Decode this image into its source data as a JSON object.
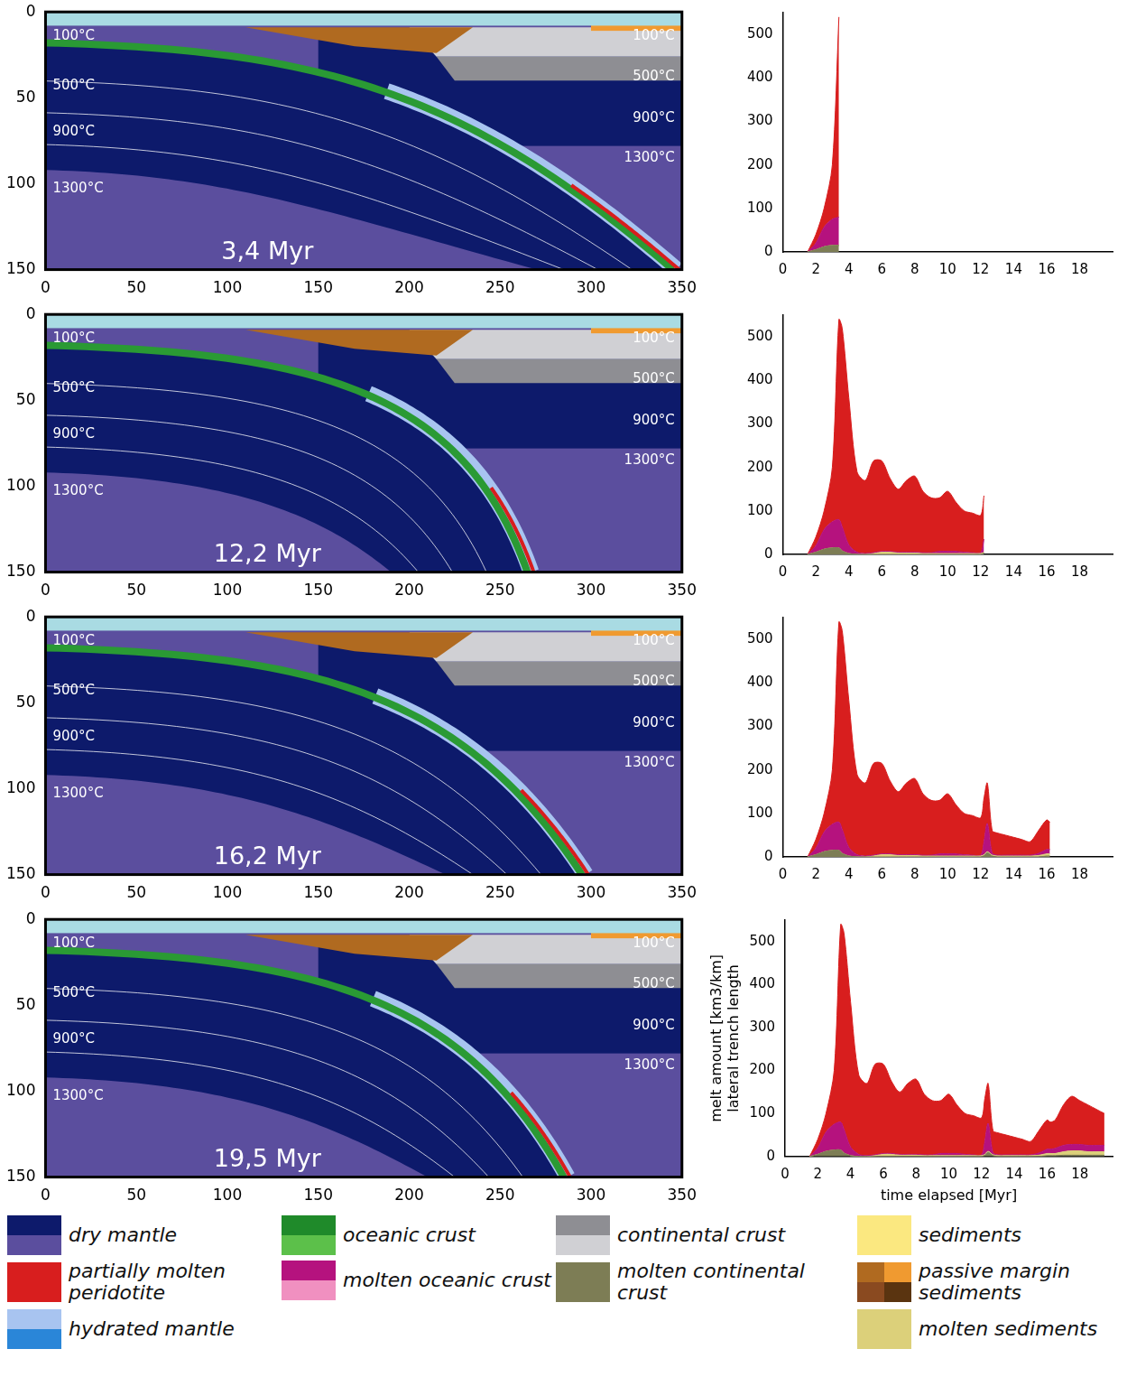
{
  "chart_data": [
    {
      "type": "section",
      "title": "3,4 Myr",
      "xlim": [
        0,
        350
      ],
      "xticks": [
        0,
        50,
        100,
        150,
        200,
        250,
        300,
        350
      ],
      "ylim": [
        150,
        0
      ],
      "yticks": [
        0,
        50,
        100,
        150
      ],
      "grid": false,
      "annotations": [
        "100°C",
        "500°C",
        "900°C",
        "1300°C",
        "100°C",
        "500°C",
        "900°C",
        "1300°C"
      ]
    },
    {
      "type": "area",
      "stacked": true,
      "grid": false,
      "xlim": [
        0,
        20
      ],
      "xticks": [
        0,
        2,
        4,
        6,
        8,
        10,
        12,
        14,
        16,
        18
      ],
      "ylim": [
        0,
        550
      ],
      "yticks": [
        0,
        100,
        200,
        300,
        400,
        500
      ],
      "x": [
        1.5,
        2,
        2.5,
        3,
        3.4
      ],
      "series": [
        {
          "name": "molten continental crust",
          "color": "#7d7d55",
          "values": [
            0,
            5,
            12,
            15,
            15
          ]
        },
        {
          "name": "molten sediments",
          "color": "#dcd07a",
          "values": [
            0,
            0,
            0,
            0,
            0
          ]
        },
        {
          "name": "molten oceanic crust",
          "color": "#b5127e",
          "values": [
            0,
            15,
            45,
            60,
            65
          ]
        },
        {
          "name": "partially molten peridotite",
          "color": "#d81e1e",
          "values": [
            0,
            20,
            43,
            125,
            460
          ]
        }
      ]
    },
    {
      "type": "section",
      "title": "12,2 Myr",
      "xlim": [
        0,
        350
      ],
      "xticks": [
        0,
        50,
        100,
        150,
        200,
        250,
        300,
        350
      ],
      "ylim": [
        150,
        0
      ],
      "yticks": [
        0,
        50,
        100,
        150
      ],
      "grid": false,
      "annotations": [
        "100°C",
        "500°C",
        "900°C",
        "1300°C",
        "100°C",
        "500°C",
        "900°C",
        "1300°C"
      ]
    },
    {
      "type": "area",
      "stacked": true,
      "grid": false,
      "xlim": [
        0,
        20
      ],
      "xticks": [
        0,
        2,
        4,
        6,
        8,
        10,
        12,
        14,
        16,
        18
      ],
      "ylim": [
        0,
        550
      ],
      "yticks": [
        0,
        100,
        200,
        300,
        400,
        500
      ],
      "x": [
        1.5,
        2,
        2.5,
        3,
        3.4,
        3.6,
        4,
        4.5,
        5,
        5.5,
        6,
        6.5,
        7,
        7.5,
        8,
        8.5,
        9,
        9.5,
        10,
        10.5,
        11,
        11.5,
        12,
        12.2
      ],
      "series": [
        {
          "name": "molten continental crust",
          "color": "#7d7d55",
          "values": [
            0,
            5,
            12,
            15,
            15,
            8,
            2,
            0,
            0,
            0,
            0,
            0,
            0,
            0,
            0,
            0,
            0,
            0,
            0,
            0,
            0,
            0,
            0,
            3
          ]
        },
        {
          "name": "molten sediments",
          "color": "#dcd07a",
          "values": [
            0,
            0,
            0,
            0,
            0,
            0,
            0,
            0,
            0,
            2,
            5,
            5,
            3,
            3,
            3,
            2,
            2,
            2,
            2,
            2,
            2,
            2,
            2,
            2
          ]
        },
        {
          "name": "molten oceanic crust",
          "color": "#b5127e",
          "values": [
            0,
            15,
            45,
            60,
            65,
            55,
            20,
            5,
            2,
            2,
            2,
            2,
            2,
            2,
            2,
            2,
            2,
            5,
            5,
            5,
            3,
            2,
            2,
            30
          ]
        },
        {
          "name": "partially molten peridotite",
          "color": "#d81e1e",
          "values": [
            0,
            20,
            43,
            125,
            460,
            457,
            338,
            185,
            168,
            211,
            208,
            168,
            145,
            165,
            175,
            141,
            126,
            123,
            138,
            113,
            95,
            91,
            86,
            100
          ]
        }
      ]
    },
    {
      "type": "section",
      "title": "16,2 Myr",
      "xlim": [
        0,
        350
      ],
      "xticks": [
        0,
        50,
        100,
        150,
        200,
        250,
        300,
        350
      ],
      "ylim": [
        150,
        0
      ],
      "yticks": [
        0,
        50,
        100,
        150
      ],
      "grid": false,
      "annotations": [
        "100°C",
        "500°C",
        "900°C",
        "1300°C",
        "100°C",
        "500°C",
        "900°C",
        "1300°C"
      ]
    },
    {
      "type": "area",
      "stacked": true,
      "grid": false,
      "xlim": [
        0,
        20
      ],
      "xticks": [
        0,
        2,
        4,
        6,
        8,
        10,
        12,
        14,
        16,
        18
      ],
      "ylim": [
        0,
        550
      ],
      "yticks": [
        0,
        100,
        200,
        300,
        400,
        500
      ],
      "x": [
        1.5,
        2,
        2.5,
        3,
        3.4,
        3.6,
        4,
        4.5,
        5,
        5.5,
        6,
        6.5,
        7,
        7.5,
        8,
        8.5,
        9,
        9.5,
        10,
        10.5,
        11,
        11.5,
        12,
        12.2,
        12.4,
        12.7,
        13,
        13.5,
        14,
        14.5,
        15,
        15.5,
        16,
        16.2
      ],
      "series": [
        {
          "name": "molten continental crust",
          "color": "#7d7d55",
          "values": [
            0,
            5,
            12,
            15,
            15,
            8,
            2,
            0,
            0,
            0,
            0,
            0,
            0,
            0,
            0,
            0,
            0,
            0,
            0,
            0,
            0,
            0,
            0,
            3,
            10,
            2,
            0,
            0,
            0,
            0,
            0,
            0,
            2,
            2
          ]
        },
        {
          "name": "molten sediments",
          "color": "#dcd07a",
          "values": [
            0,
            0,
            0,
            0,
            0,
            0,
            0,
            0,
            0,
            2,
            5,
            5,
            3,
            3,
            3,
            2,
            2,
            2,
            2,
            2,
            2,
            2,
            2,
            2,
            2,
            2,
            2,
            2,
            2,
            2,
            2,
            3,
            5,
            5
          ]
        },
        {
          "name": "molten oceanic crust",
          "color": "#b5127e",
          "values": [
            0,
            15,
            45,
            60,
            65,
            55,
            20,
            5,
            2,
            2,
            2,
            2,
            2,
            2,
            2,
            2,
            2,
            5,
            5,
            5,
            3,
            2,
            2,
            30,
            65,
            5,
            2,
            2,
            2,
            2,
            2,
            5,
            10,
            10
          ]
        },
        {
          "name": "partially molten peridotite",
          "color": "#d81e1e",
          "values": [
            0,
            20,
            43,
            125,
            460,
            457,
            338,
            185,
            168,
            211,
            208,
            168,
            145,
            165,
            175,
            141,
            126,
            123,
            138,
            113,
            95,
            91,
            86,
            100,
            93,
            51,
            51,
            46,
            41,
            36,
            31,
            52,
            68,
            63
          ]
        }
      ]
    },
    {
      "type": "section",
      "title": "19,5 Myr",
      "xlim": [
        0,
        350
      ],
      "xticks": [
        0,
        50,
        100,
        150,
        200,
        250,
        300,
        350
      ],
      "ylim": [
        150,
        0
      ],
      "yticks": [
        0,
        50,
        100,
        150
      ],
      "grid": false,
      "annotations": [
        "100°C",
        "500°C",
        "900°C",
        "1300°C",
        "100°C",
        "500°C",
        "900°C",
        "1300°C"
      ]
    },
    {
      "type": "area",
      "stacked": true,
      "grid": false,
      "xlim": [
        0,
        20
      ],
      "xticks": [
        0,
        2,
        4,
        6,
        8,
        10,
        12,
        14,
        16,
        18
      ],
      "ylim": [
        0,
        550
      ],
      "yticks": [
        0,
        100,
        200,
        300,
        400,
        500
      ],
      "xlabel": "time elapsed [Myr]",
      "ylabel": [
        "melt amount [km3/km]",
        "lateral trench length"
      ],
      "x": [
        1.5,
        2,
        2.5,
        3,
        3.4,
        3.6,
        4,
        4.5,
        5,
        5.5,
        6,
        6.5,
        7,
        7.5,
        8,
        8.5,
        9,
        9.5,
        10,
        10.5,
        11,
        11.5,
        12,
        12.2,
        12.4,
        12.7,
        13,
        13.5,
        14,
        14.5,
        15,
        15.5,
        16,
        16.2,
        16.5,
        17,
        17.5,
        18,
        18.5,
        19,
        19.5
      ],
      "series": [
        {
          "name": "molten continental crust",
          "color": "#7d7d55",
          "values": [
            0,
            5,
            12,
            15,
            15,
            8,
            2,
            0,
            0,
            0,
            0,
            0,
            0,
            0,
            0,
            0,
            0,
            0,
            0,
            0,
            0,
            0,
            0,
            3,
            10,
            2,
            0,
            0,
            0,
            0,
            0,
            0,
            2,
            2,
            2,
            3,
            3,
            3,
            3,
            3,
            3
          ]
        },
        {
          "name": "molten sediments",
          "color": "#dcd07a",
          "values": [
            0,
            0,
            0,
            0,
            0,
            0,
            0,
            0,
            0,
            2,
            5,
            5,
            3,
            3,
            3,
            2,
            2,
            2,
            2,
            2,
            2,
            2,
            2,
            2,
            2,
            2,
            2,
            2,
            2,
            2,
            2,
            3,
            5,
            5,
            5,
            8,
            10,
            10,
            8,
            8,
            8
          ]
        },
        {
          "name": "molten oceanic crust",
          "color": "#b5127e",
          "values": [
            0,
            15,
            45,
            60,
            65,
            55,
            20,
            5,
            2,
            2,
            2,
            2,
            2,
            2,
            2,
            2,
            2,
            5,
            5,
            5,
            3,
            2,
            2,
            30,
            65,
            5,
            2,
            2,
            2,
            2,
            2,
            5,
            10,
            10,
            12,
            15,
            15,
            15,
            15,
            15,
            15
          ]
        },
        {
          "name": "partially molten peridotite",
          "color": "#d81e1e",
          "values": [
            0,
            20,
            43,
            125,
            460,
            457,
            338,
            185,
            168,
            211,
            208,
            168,
            145,
            165,
            175,
            141,
            126,
            123,
            138,
            113,
            95,
            91,
            86,
            100,
            93,
            51,
            51,
            46,
            41,
            36,
            31,
            52,
            68,
            63,
            66,
            94,
            112,
            102,
            94,
            84,
            74
          ]
        }
      ]
    }
  ],
  "key": [
    [
      {
        "label": "dry mantle",
        "colors": [
          "#0d1a6b",
          "#5b4e9e"
        ]
      },
      {
        "label": "partially molten peridotite",
        "colors": [
          "#d81e1e"
        ]
      },
      {
        "label": "hydrated mantle",
        "colors": [
          "#a8c4f0",
          "#2a86d8"
        ]
      }
    ],
    [
      {
        "label": "oceanic crust",
        "colors": [
          "#1f8a2a",
          "#5cc04a"
        ]
      },
      {
        "label": "molten oceanic crust",
        "colors": [
          "#b5127e",
          "#f090c0"
        ]
      }
    ],
    [
      {
        "label": "continental crust",
        "colors": [
          "#8e8e93",
          "#d0d0d4"
        ]
      },
      {
        "label": "molten continental crust",
        "colors": [
          "#7d7d55"
        ]
      }
    ],
    [
      {
        "label": "sediments",
        "colors": [
          "#fbe880"
        ]
      },
      {
        "label": "passive margin sediments",
        "colors": [
          "#b06a20",
          "#f09a30",
          "#8a4a20",
          "#5a3410"
        ]
      },
      {
        "label": "molten sediments",
        "colors": [
          "#dcd07a"
        ]
      }
    ]
  ]
}
